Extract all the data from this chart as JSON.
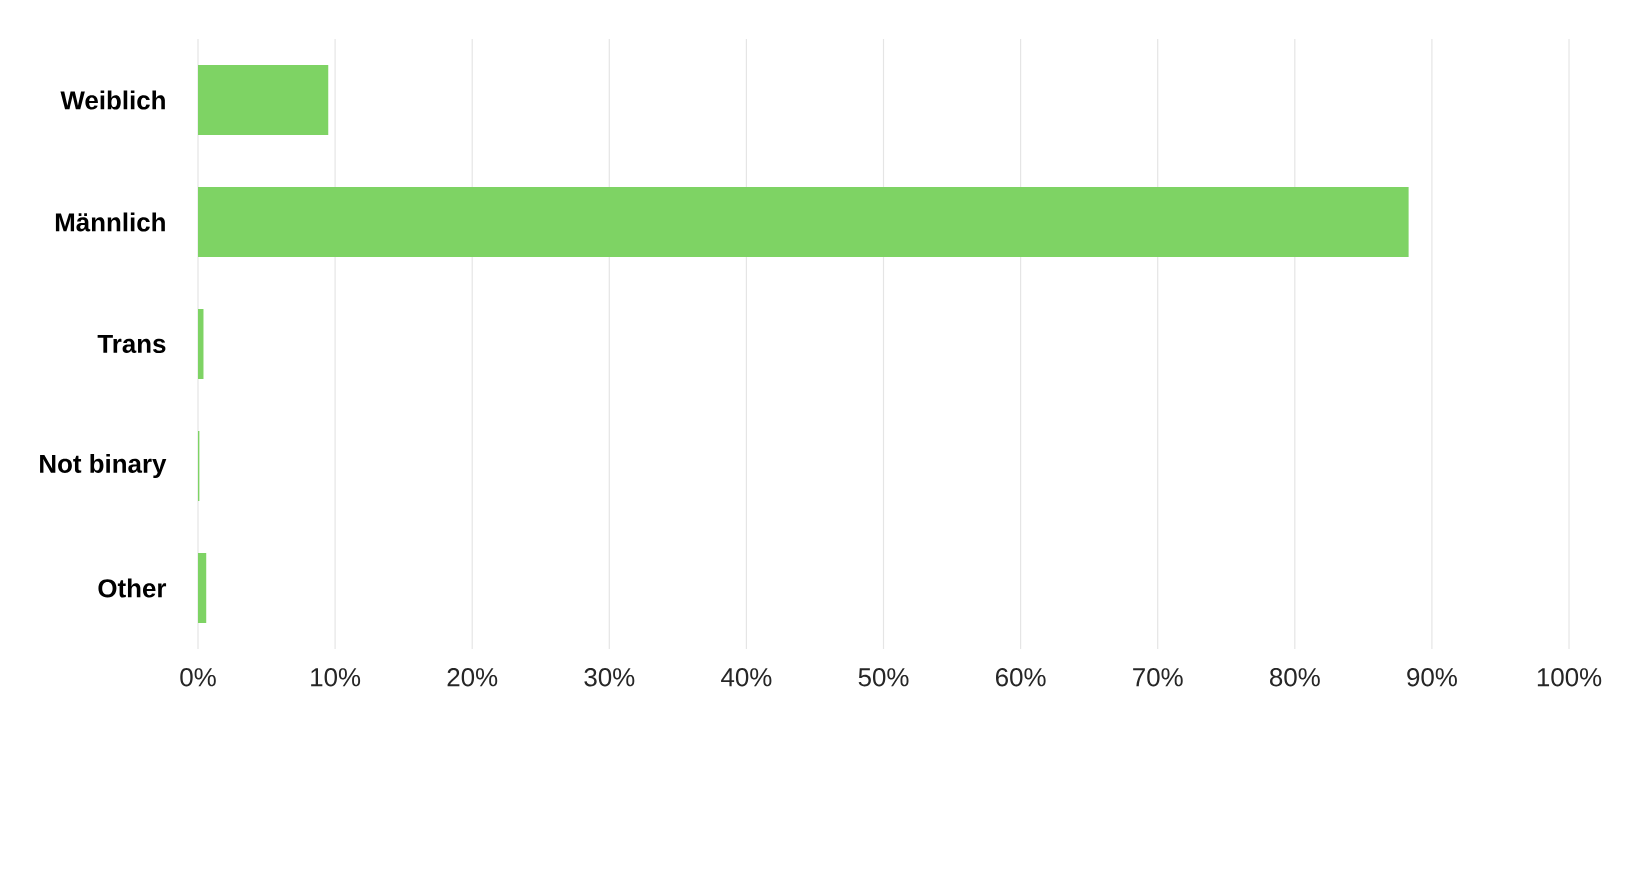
{
  "chart_data": {
    "type": "bar",
    "orientation": "horizontal",
    "categories": [
      "Weiblich",
      "Männlich",
      "Trans",
      "Not binary",
      "Other"
    ],
    "values": [
      9.5,
      88.3,
      0.4,
      0.1,
      0.6
    ],
    "color": "#7ed364",
    "xlim": [
      0,
      100
    ],
    "xticks": [
      {
        "value": 0,
        "label": "0%"
      },
      {
        "value": 10,
        "label": "10%"
      },
      {
        "value": 20,
        "label": "20%"
      },
      {
        "value": 30,
        "label": "30%"
      },
      {
        "value": 40,
        "label": "40%"
      },
      {
        "value": 50,
        "label": "50%"
      },
      {
        "value": 60,
        "label": "60%"
      },
      {
        "value": 70,
        "label": "70%"
      },
      {
        "value": 80,
        "label": "80%"
      },
      {
        "value": 90,
        "label": "90%"
      },
      {
        "value": 100,
        "label": "100%"
      }
    ],
    "grid": "x"
  }
}
